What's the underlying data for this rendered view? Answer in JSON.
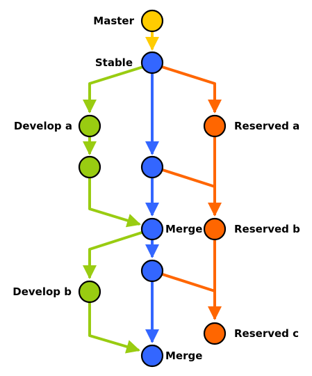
{
  "colors": {
    "master": "#FFCC00",
    "stable": "#3366FF",
    "develop": "#99CC11",
    "reserved": "#FF6600",
    "outline": "#000000"
  },
  "labels": {
    "master": "Master",
    "stable": "Stable",
    "develop_a": "Develop a",
    "develop_b": "Develop b",
    "merge_1": "Merge",
    "merge_2": "Merge",
    "reserved_a": "Reserved a",
    "reserved_b": "Reserved b",
    "reserved_c": "Reserved c"
  },
  "nodes": [
    {
      "id": "master",
      "branch": "master"
    },
    {
      "id": "stable",
      "branch": "stable"
    },
    {
      "id": "develop-a",
      "branch": "develop"
    },
    {
      "id": "develop-a-2",
      "branch": "develop"
    },
    {
      "id": "stable-2",
      "branch": "stable"
    },
    {
      "id": "merge-1",
      "branch": "stable"
    },
    {
      "id": "stable-3",
      "branch": "stable"
    },
    {
      "id": "merge-2",
      "branch": "stable"
    },
    {
      "id": "develop-b",
      "branch": "develop"
    },
    {
      "id": "reserved-a",
      "branch": "reserved"
    },
    {
      "id": "reserved-b",
      "branch": "reserved"
    },
    {
      "id": "reserved-c",
      "branch": "reserved"
    }
  ],
  "edges": [
    {
      "from": "master",
      "to": "stable",
      "branch": "master"
    },
    {
      "from": "stable",
      "to": "develop-a",
      "branch": "develop"
    },
    {
      "from": "develop-a",
      "to": "develop-a-2",
      "branch": "develop"
    },
    {
      "from": "develop-a-2",
      "to": "merge-1",
      "branch": "develop"
    },
    {
      "from": "stable",
      "to": "stable-2",
      "branch": "stable"
    },
    {
      "from": "stable-2",
      "to": "merge-1",
      "branch": "stable"
    },
    {
      "from": "merge-1",
      "to": "stable-3",
      "branch": "stable"
    },
    {
      "from": "stable-3",
      "to": "merge-2",
      "branch": "stable"
    },
    {
      "from": "merge-1",
      "to": "develop-b",
      "branch": "develop"
    },
    {
      "from": "develop-b",
      "to": "merge-2",
      "branch": "develop"
    },
    {
      "from": "stable",
      "to": "reserved-a",
      "branch": "reserved"
    },
    {
      "from": "reserved-a",
      "to": "reserved-b",
      "branch": "reserved"
    },
    {
      "from": "stable-2",
      "to": "reserved-b",
      "branch": "reserved"
    },
    {
      "from": "reserved-b",
      "to": "reserved-c",
      "branch": "reserved"
    },
    {
      "from": "stable-3",
      "to": "reserved-c",
      "branch": "reserved"
    }
  ]
}
